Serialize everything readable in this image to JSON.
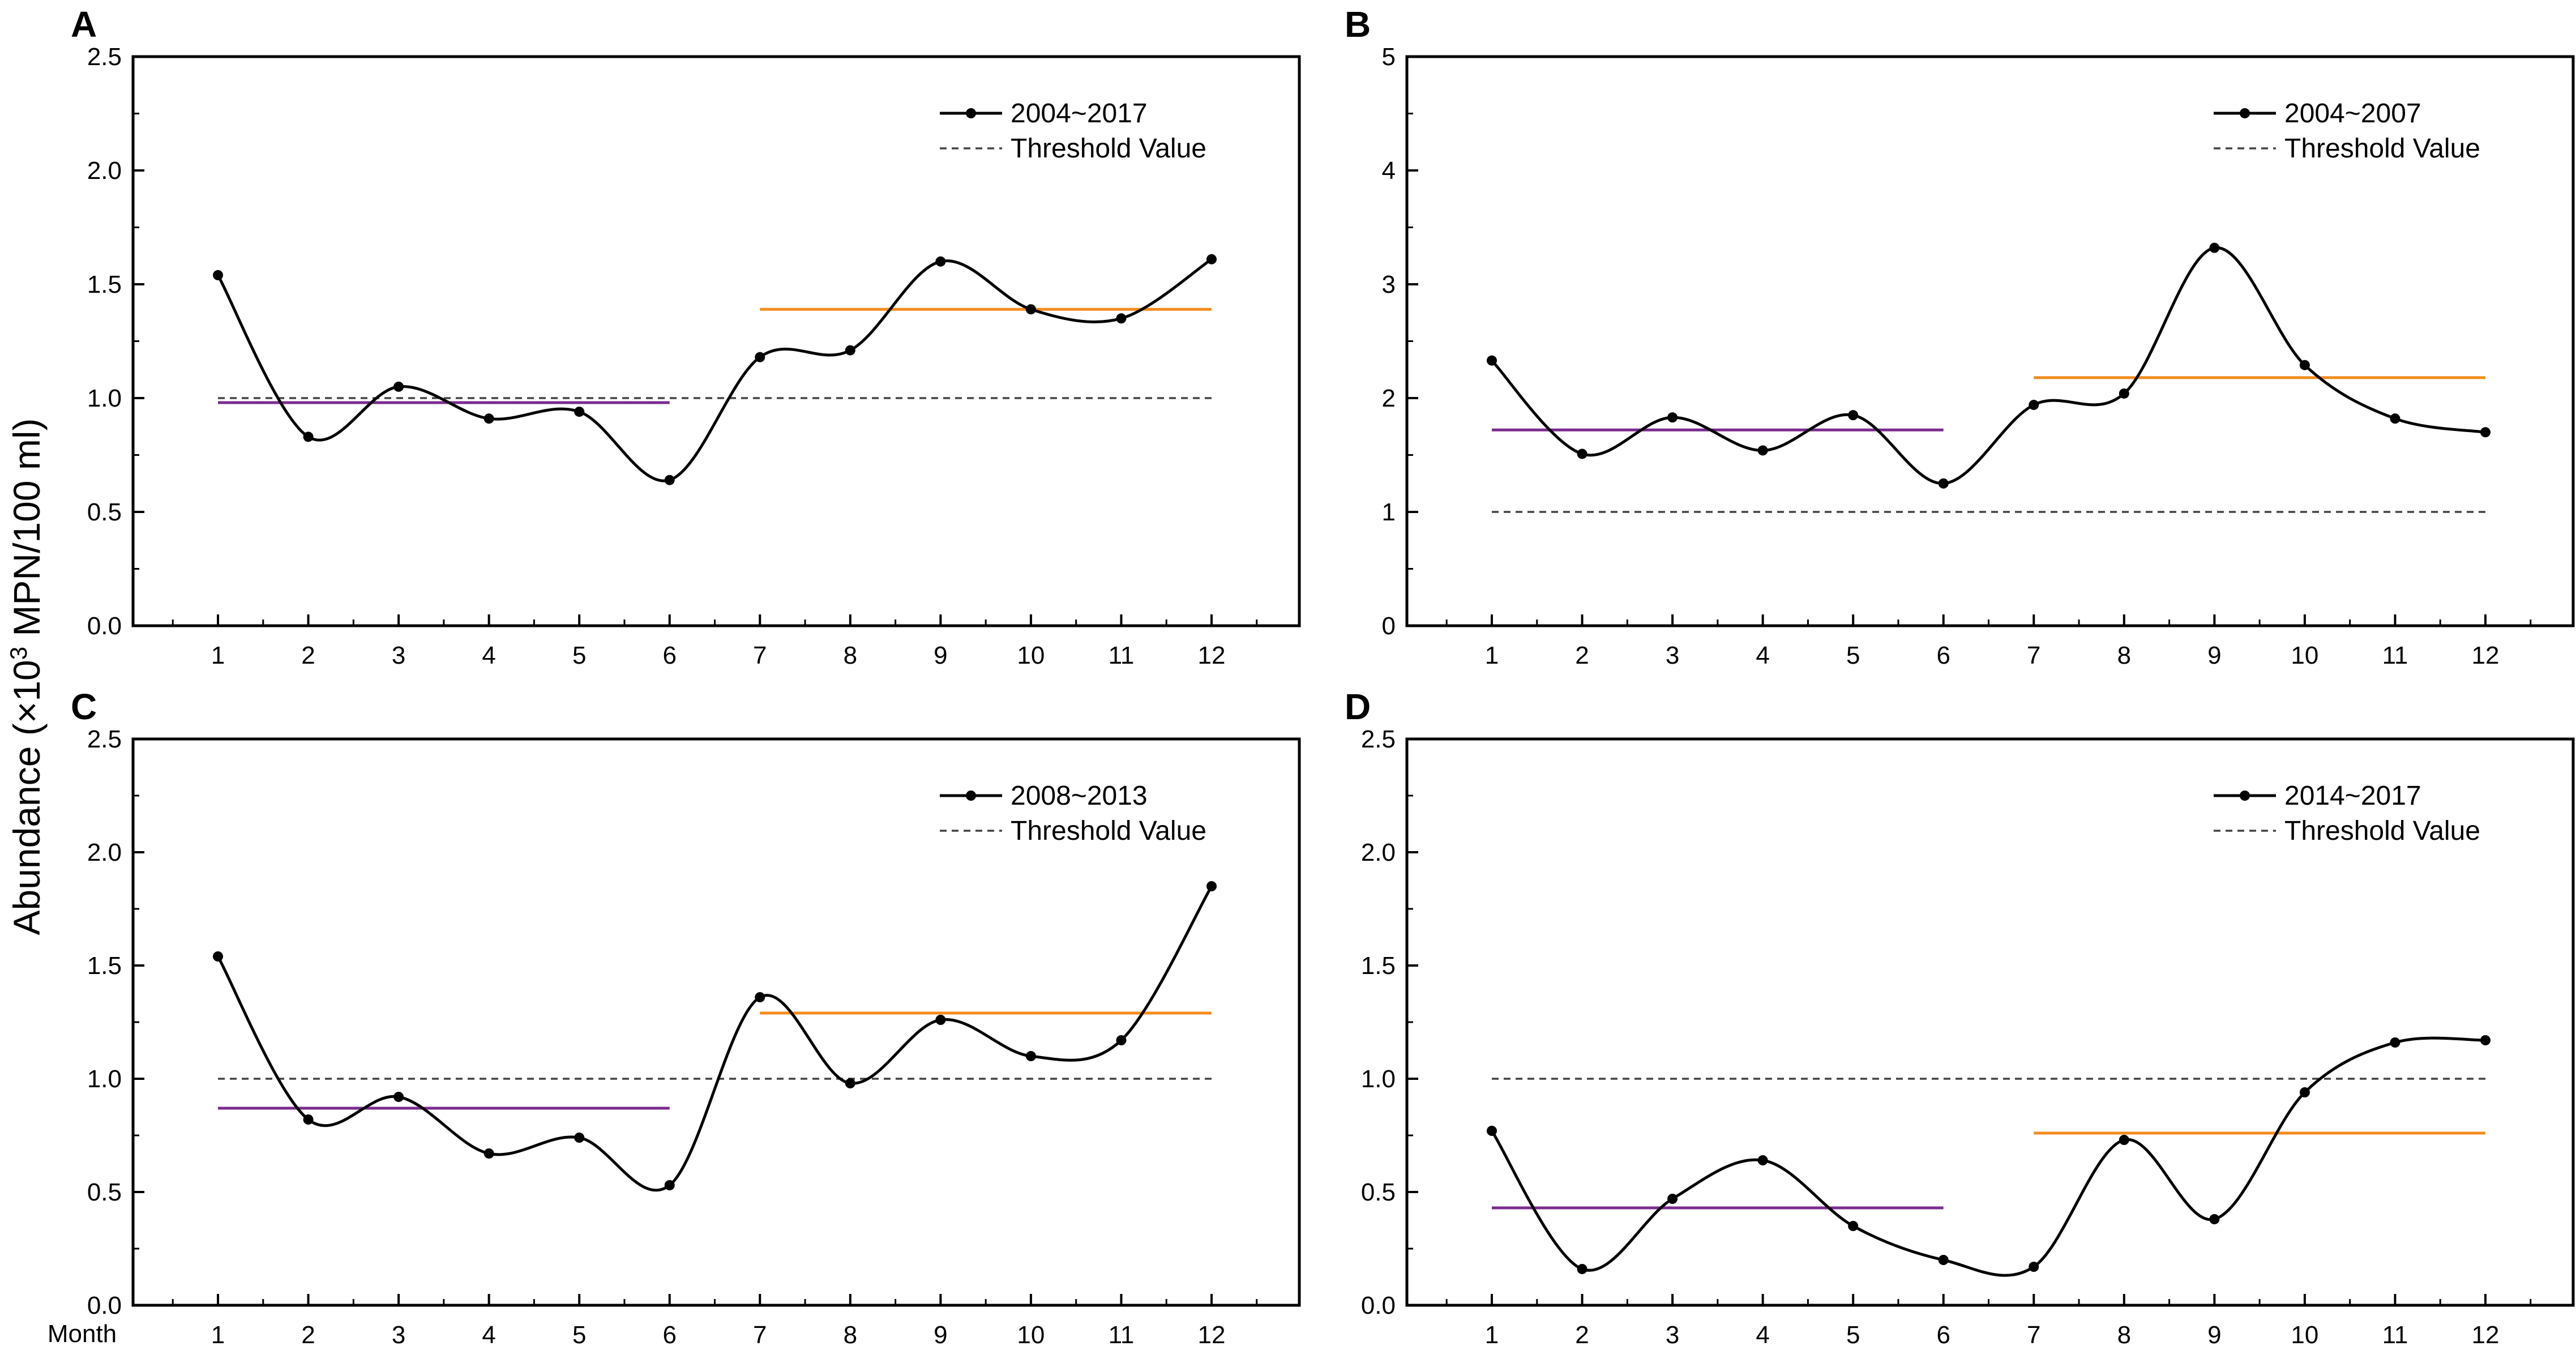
{
  "figure": {
    "ylabel_prefix": "Abundance (×10",
    "ylabel_exp": "3",
    "ylabel_suffix": " MPN/100 ml)",
    "xlabel": "Month"
  },
  "colors": {
    "series": "#000000",
    "threshold": "#444444",
    "mean_first_half": "#7B2C8E",
    "mean_second_half": "#F28C1E"
  },
  "chart_data": [
    {
      "type": "line",
      "panel_label": "A",
      "x": [
        1,
        2,
        3,
        4,
        5,
        6,
        7,
        8,
        9,
        10,
        11,
        12
      ],
      "x_tick_labels": [
        "1",
        "2",
        "3",
        "4",
        "5",
        "6",
        "7",
        "8",
        "9",
        "10",
        "11",
        "12"
      ],
      "series": [
        {
          "name": "2004~2017",
          "values": [
            1.54,
            0.83,
            1.05,
            0.91,
            0.94,
            0.64,
            1.18,
            1.21,
            1.6,
            1.39,
            1.35,
            1.61
          ]
        }
      ],
      "threshold": {
        "name": "Threshold Value",
        "value": 1.0
      },
      "mean_lines": [
        {
          "from_month": 1,
          "to_month": 6,
          "value": 0.98,
          "color": "#7B2C8E"
        },
        {
          "from_month": 7,
          "to_month": 12,
          "value": 1.39,
          "color": "#F28C1E"
        }
      ],
      "ylim": [
        0,
        2.5
      ],
      "y_ticks": [
        "0.0",
        "0.5",
        "1.0",
        "1.5",
        "2.0",
        "2.5"
      ],
      "legend": [
        "2004~2017",
        "Threshold Value"
      ],
      "legend_position": "top-right"
    },
    {
      "type": "line",
      "panel_label": "B",
      "x": [
        1,
        2,
        3,
        4,
        5,
        6,
        7,
        8,
        9,
        10,
        11,
        12
      ],
      "x_tick_labels": [
        "1",
        "2",
        "3",
        "4",
        "5",
        "6",
        "7",
        "8",
        "9",
        "10",
        "11",
        "12"
      ],
      "series": [
        {
          "name": "2004~2007",
          "values": [
            2.33,
            1.51,
            1.83,
            1.54,
            1.85,
            1.25,
            1.94,
            2.04,
            3.32,
            2.29,
            1.82,
            1.7
          ]
        }
      ],
      "threshold": {
        "name": "Threshold Value",
        "value": 1.0
      },
      "mean_lines": [
        {
          "from_month": 1,
          "to_month": 6,
          "value": 1.72,
          "color": "#7B2C8E"
        },
        {
          "from_month": 7,
          "to_month": 12,
          "value": 2.18,
          "color": "#F28C1E"
        }
      ],
      "ylim": [
        0,
        5
      ],
      "y_ticks": [
        "0",
        "1",
        "2",
        "3",
        "4",
        "5"
      ],
      "legend": [
        "2004~2007",
        "Threshold Value"
      ],
      "legend_position": "top-right"
    },
    {
      "type": "line",
      "panel_label": "C",
      "x": [
        1,
        2,
        3,
        4,
        5,
        6,
        7,
        8,
        9,
        10,
        11,
        12
      ],
      "x_tick_labels": [
        "1",
        "2",
        "3",
        "4",
        "5",
        "6",
        "7",
        "8",
        "9",
        "10",
        "11",
        "12"
      ],
      "series": [
        {
          "name": "2008~2013",
          "values": [
            1.54,
            0.82,
            0.92,
            0.67,
            0.74,
            0.53,
            1.36,
            0.98,
            1.26,
            1.1,
            1.17,
            1.85
          ]
        }
      ],
      "threshold": {
        "name": "Threshold Value",
        "value": 1.0
      },
      "mean_lines": [
        {
          "from_month": 1,
          "to_month": 6,
          "value": 0.87,
          "color": "#7B2C8E"
        },
        {
          "from_month": 7,
          "to_month": 12,
          "value": 1.29,
          "color": "#F28C1E"
        }
      ],
      "ylim": [
        0,
        2.5
      ],
      "y_ticks": [
        "0.0",
        "0.5",
        "1.0",
        "1.5",
        "2.0",
        "2.5"
      ],
      "legend": [
        "2008~2013",
        "Threshold Value"
      ],
      "legend_position": "top-right"
    },
    {
      "type": "line",
      "panel_label": "D",
      "x": [
        1,
        2,
        3,
        4,
        5,
        6,
        7,
        8,
        9,
        10,
        11,
        12
      ],
      "x_tick_labels": [
        "1",
        "2",
        "3",
        "4",
        "5",
        "6",
        "7",
        "8",
        "9",
        "10",
        "11",
        "12"
      ],
      "series": [
        {
          "name": "2014~2017",
          "values": [
            0.77,
            0.16,
            0.47,
            0.64,
            0.35,
            0.2,
            0.17,
            0.73,
            0.38,
            0.94,
            1.16,
            1.17
          ]
        }
      ],
      "threshold": {
        "name": "Threshold Value",
        "value": 1.0
      },
      "mean_lines": [
        {
          "from_month": 1,
          "to_month": 6,
          "value": 0.43,
          "color": "#7B2C8E"
        },
        {
          "from_month": 7,
          "to_month": 12,
          "value": 0.76,
          "color": "#F28C1E"
        }
      ],
      "ylim": [
        0,
        2.5
      ],
      "y_ticks": [
        "0.0",
        "0.5",
        "1.0",
        "1.5",
        "2.0",
        "2.5"
      ],
      "legend": [
        "2014~2017",
        "Threshold Value"
      ],
      "legend_position": "top-right"
    }
  ]
}
